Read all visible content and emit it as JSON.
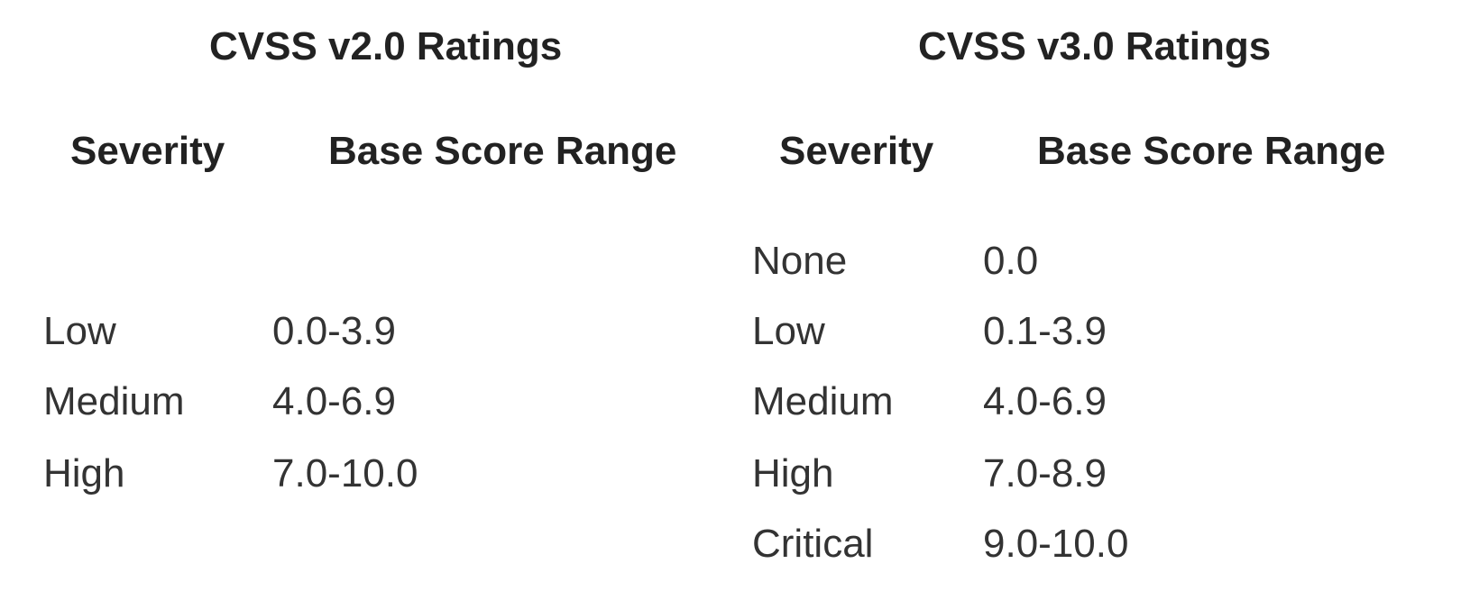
{
  "cvss_v2": {
    "title": "CVSS v2.0 Ratings",
    "headers": {
      "severity": "Severity",
      "range": "Base Score Range"
    },
    "rows": [
      {
        "severity": "Low",
        "range": "0.0-3.9"
      },
      {
        "severity": "Medium",
        "range": "4.0-6.9"
      },
      {
        "severity": "High",
        "range": "7.0-10.0"
      }
    ]
  },
  "cvss_v3": {
    "title": "CVSS v3.0 Ratings",
    "headers": {
      "severity": "Severity",
      "range": "Base Score Range"
    },
    "rows": [
      {
        "severity": "None",
        "range": "0.0"
      },
      {
        "severity": "Low",
        "range": "0.1-3.9"
      },
      {
        "severity": "Medium",
        "range": "4.0-6.9"
      },
      {
        "severity": "High",
        "range": "7.0-8.9"
      },
      {
        "severity": "Critical",
        "range": "9.0-10.0"
      }
    ]
  }
}
